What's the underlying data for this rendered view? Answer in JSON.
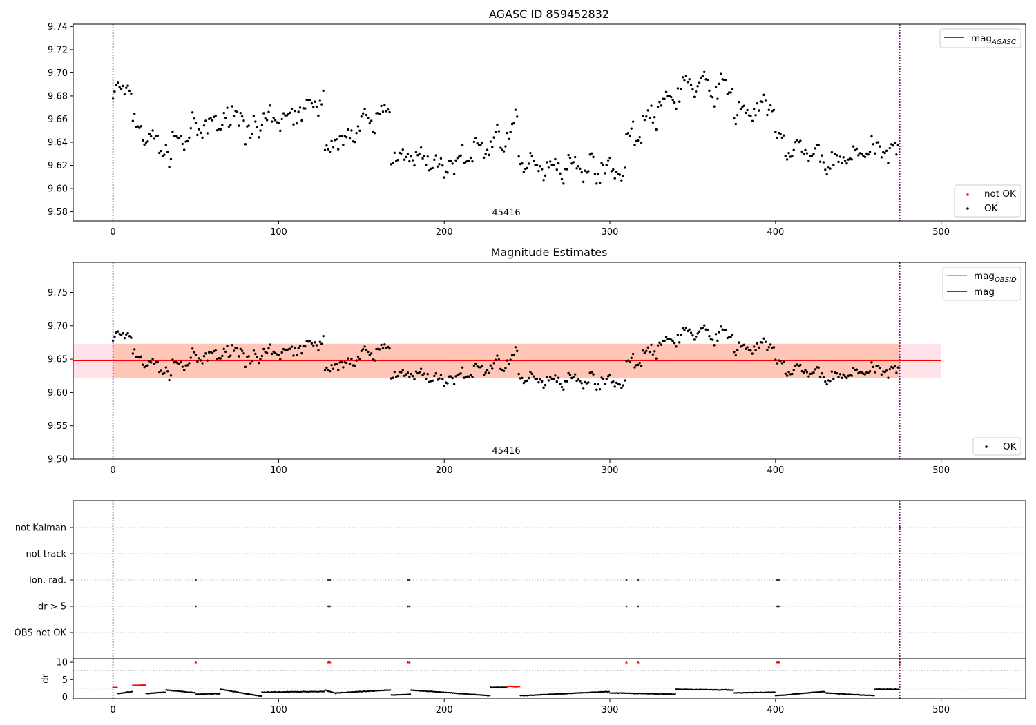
{
  "colors": {
    "ok": "#000000",
    "not_ok": "#ff0000",
    "obs_line": "#800080",
    "mag_agasc": "#008000",
    "mag_obsid": "#ffa500",
    "mag": "#ff0000",
    "band_obsid": "#ffa07a",
    "band_mag": "#ffc0cb"
  },
  "chart_data": [
    {
      "type": "scatter",
      "title": "AGASC ID 859452832",
      "xlim": [
        -24,
        551
      ],
      "ylim": [
        9.572,
        9.742
      ],
      "xticks": [
        0,
        100,
        200,
        300,
        400,
        500
      ],
      "yticks": [
        9.58,
        9.6,
        9.62,
        9.64,
        9.66,
        9.68,
        9.7,
        9.72,
        9.74
      ],
      "obsid_label": "45416",
      "obs_boundaries": [
        0,
        475
      ],
      "series": [
        {
          "name": "not OK",
          "marker": "dot",
          "values": []
        },
        {
          "name": "OK",
          "marker": "dot",
          "segments": [
            {
              "x": [
                0,
                12
              ],
              "y_start": 9.68,
              "y_end": 9.69,
              "spread": 0.012
            },
            {
              "x": [
                12,
                36
              ],
              "y_start": 9.655,
              "y_end": 9.628,
              "spread": 0.014
            },
            {
              "x": [
                36,
                80
              ],
              "y_start": 9.64,
              "y_end": 9.668,
              "spread": 0.015
            },
            {
              "x": [
                80,
                128
              ],
              "y_start": 9.648,
              "y_end": 9.675,
              "spread": 0.015
            },
            {
              "x": [
                128,
                168
              ],
              "y_start": 9.635,
              "y_end": 9.668,
              "spread": 0.014
            },
            {
              "x": [
                168,
                200
              ],
              "y_start": 9.632,
              "y_end": 9.618,
              "spread": 0.014
            },
            {
              "x": [
                200,
                245
              ],
              "y_start": 9.618,
              "y_end": 9.652,
              "spread": 0.015
            },
            {
              "x": [
                245,
                310
              ],
              "y_start": 9.622,
              "y_end": 9.616,
              "spread": 0.013
            },
            {
              "x": [
                310,
                345
              ],
              "y_start": 9.64,
              "y_end": 9.69,
              "spread": 0.015
            },
            {
              "x": [
                345,
                375
              ],
              "y_start": 9.69,
              "y_end": 9.685,
              "spread": 0.013
            },
            {
              "x": [
                375,
                400
              ],
              "y_start": 9.665,
              "y_end": 9.672,
              "spread": 0.012
            },
            {
              "x": [
                400,
                440
              ],
              "y_start": 9.64,
              "y_end": 9.62,
              "spread": 0.014
            },
            {
              "x": [
                440,
                475
              ],
              "y_start": 9.628,
              "y_end": 9.635,
              "spread": 0.013
            }
          ]
        }
      ],
      "lines": [
        {
          "name": "mag_AGASC"
        }
      ],
      "legend_upper": "upper right",
      "legend_lower": "lower right"
    },
    {
      "type": "scatter",
      "title": "Magnitude Estimates",
      "xlim": [
        -24,
        551
      ],
      "ylim": [
        9.5,
        9.795
      ],
      "xticks": [
        0,
        100,
        200,
        300,
        400,
        500
      ],
      "yticks": [
        9.5,
        9.55,
        9.6,
        9.65,
        9.7,
        9.75
      ],
      "obsid_label": "45416",
      "obs_boundaries": [
        0,
        475
      ],
      "lines": [
        {
          "name": "mag_OBSID",
          "y": 9.648,
          "x": [
            0,
            475
          ],
          "band": [
            9.622,
            9.673
          ]
        },
        {
          "name": "mag",
          "y": 9.648,
          "x": [
            -24,
            500
          ],
          "band": [
            9.622,
            9.673
          ]
        }
      ],
      "series": [
        {
          "name": "OK",
          "marker": "dot",
          "same_as_panel": 1
        }
      ],
      "legend_upper": "upper right",
      "legend_lower": "lower right"
    },
    {
      "type": "scatter",
      "title": "",
      "xlim": [
        -24,
        551
      ],
      "categories": [
        "not Kalman",
        "not track",
        "Ion. rad.",
        "dr > 5",
        "OBS not OK"
      ],
      "flags": [
        {
          "name": "not Kalman",
          "x": [
            475
          ]
        },
        {
          "name": "not track",
          "x": []
        },
        {
          "name": "Ion. rad.",
          "x": [
            50,
            130,
            131,
            178,
            179,
            310,
            317,
            401,
            402
          ]
        },
        {
          "name": "dr > 5",
          "x": [
            50,
            130,
            131,
            178,
            179,
            310,
            317,
            401,
            402
          ]
        },
        {
          "name": "OBS not OK",
          "x": []
        }
      ],
      "obs_boundaries": [
        0,
        475
      ]
    },
    {
      "type": "scatter",
      "title": "",
      "ylabel": "dr",
      "xlim": [
        -24,
        551
      ],
      "ylim": [
        -0.5,
        11
      ],
      "xticks": [
        0,
        100,
        200,
        300,
        400,
        500
      ],
      "yticks": [
        0,
        5,
        10
      ],
      "not_ok_high": {
        "x": [
          50,
          130,
          131,
          178,
          179,
          310,
          317,
          401,
          402,
          475
        ],
        "y": 10
      },
      "segments": [
        {
          "x": [
            0,
            3
          ],
          "y": 2.8,
          "red": true
        },
        {
          "x": [
            3,
            12
          ],
          "y_start": 1.0,
          "y_end": 1.6
        },
        {
          "x": [
            12,
            20
          ],
          "y": 3.4,
          "red": true
        },
        {
          "x": [
            20,
            32
          ],
          "y_start": 1.0,
          "y_end": 1.4
        },
        {
          "x": [
            32,
            50
          ],
          "y_start": 2.0,
          "y_end": 1.2
        },
        {
          "x": [
            50,
            65
          ],
          "y_start": 0.8,
          "y_end": 1.0
        },
        {
          "x": [
            65,
            90
          ],
          "y_start": 2.2,
          "y_end": 0.2
        },
        {
          "x": [
            90,
            128
          ],
          "y_start": 1.4,
          "y_end": 1.6
        },
        {
          "x": [
            128,
            135
          ],
          "y_start": 2.0,
          "y_end": 1.0
        },
        {
          "x": [
            135,
            168
          ],
          "y_start": 1.2,
          "y_end": 2.0
        },
        {
          "x": [
            168,
            180
          ],
          "y_start": 0.6,
          "y_end": 0.8
        },
        {
          "x": [
            180,
            228
          ],
          "y_start": 2.0,
          "y_end": 0.4
        },
        {
          "x": [
            228,
            238
          ],
          "y": 2.8
        },
        {
          "x": [
            238,
            246
          ],
          "y": 3.0,
          "red": true
        },
        {
          "x": [
            246,
            300
          ],
          "y_start": 0.4,
          "y_end": 1.6
        },
        {
          "x": [
            300,
            340
          ],
          "y_start": 1.2,
          "y_end": 0.8
        },
        {
          "x": [
            340,
            375
          ],
          "y_start": 2.2,
          "y_end": 2.0
        },
        {
          "x": [
            375,
            400
          ],
          "y_start": 1.2,
          "y_end": 1.4
        },
        {
          "x": [
            400,
            430
          ],
          "y_start": 0.4,
          "y_end": 1.6
        },
        {
          "x": [
            430,
            460
          ],
          "y_start": 1.2,
          "y_end": 0.4
        },
        {
          "x": [
            460,
            475
          ],
          "y": 2.2
        }
      ]
    }
  ],
  "legend": {
    "mag_prefix": "mag",
    "agasc_sub": "AGASC",
    "obsid_sub": "OBSID",
    "mag_label": "mag",
    "not_ok_label": "not OK",
    "ok_label": "OK"
  }
}
